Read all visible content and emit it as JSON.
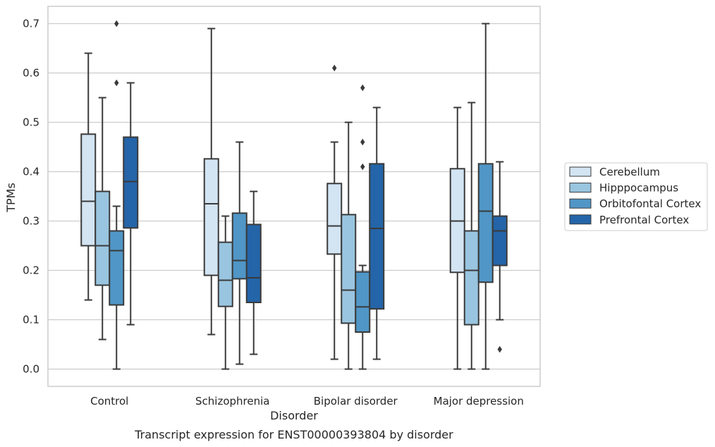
{
  "chart_data": {
    "type": "boxplot",
    "xlabel": "Disorder",
    "ylabel": "TPMs",
    "caption": "Transcript expression for ENST00000393804 by disorder",
    "ylim": [
      -0.035,
      0.735
    ],
    "yticks": [
      "0.0",
      "0.1",
      "0.2",
      "0.3",
      "0.4",
      "0.5",
      "0.6",
      "0.7"
    ],
    "ytick_values": [
      0.0,
      0.1,
      0.2,
      0.3,
      0.4,
      0.5,
      0.6,
      0.7
    ],
    "grid": "horizontal",
    "legend_position": "right",
    "categories": [
      "Control",
      "Schizophrenia",
      "Bipolar disorder",
      "Major depression"
    ],
    "series": [
      {
        "name": "Cerebellum",
        "color": "#d3e4f3",
        "boxes": [
          {
            "whisker_low": 0.14,
            "q1": 0.25,
            "median": 0.34,
            "q3": 0.476,
            "whisker_high": 0.64,
            "outliers": []
          },
          {
            "whisker_low": 0.07,
            "q1": 0.19,
            "median": 0.335,
            "q3": 0.426,
            "whisker_high": 0.69,
            "outliers": []
          },
          {
            "whisker_low": 0.02,
            "q1": 0.233,
            "median": 0.29,
            "q3": 0.376,
            "whisker_high": 0.46,
            "outliers": [
              0.61
            ]
          },
          {
            "whisker_low": 0.0,
            "q1": 0.196,
            "median": 0.3,
            "q3": 0.406,
            "whisker_high": 0.53,
            "outliers": []
          }
        ]
      },
      {
        "name": "Hipppocampus",
        "color": "#99c5e0",
        "boxes": [
          {
            "whisker_low": 0.06,
            "q1": 0.17,
            "median": 0.25,
            "q3": 0.36,
            "whisker_high": 0.55,
            "outliers": []
          },
          {
            "whisker_low": 0.0,
            "q1": 0.127,
            "median": 0.18,
            "q3": 0.257,
            "whisker_high": 0.31,
            "outliers": []
          },
          {
            "whisker_low": 0.0,
            "q1": 0.093,
            "median": 0.16,
            "q3": 0.313,
            "whisker_high": 0.5,
            "outliers": []
          },
          {
            "whisker_low": 0.0,
            "q1": 0.09,
            "median": 0.2,
            "q3": 0.28,
            "whisker_high": 0.54,
            "outliers": []
          }
        ]
      },
      {
        "name": "Orbitofontal Cortex",
        "color": "#5096c6",
        "boxes": [
          {
            "whisker_low": 0.0,
            "q1": 0.13,
            "median": 0.24,
            "q3": 0.28,
            "whisker_high": 0.33,
            "outliers": [
              0.58,
              0.7
            ]
          },
          {
            "whisker_low": 0.01,
            "q1": 0.183,
            "median": 0.22,
            "q3": 0.316,
            "whisker_high": 0.46,
            "outliers": []
          },
          {
            "whisker_low": 0.0,
            "q1": 0.075,
            "median": 0.126,
            "q3": 0.197,
            "whisker_high": 0.21,
            "outliers": [
              0.41,
              0.46,
              0.57
            ]
          },
          {
            "whisker_low": 0.0,
            "q1": 0.176,
            "median": 0.32,
            "q3": 0.416,
            "whisker_high": 0.7,
            "outliers": []
          }
        ]
      },
      {
        "name": "Prefrontal Cortex",
        "color": "#2464a8",
        "boxes": [
          {
            "whisker_low": 0.09,
            "q1": 0.286,
            "median": 0.38,
            "q3": 0.47,
            "whisker_high": 0.58,
            "outliers": []
          },
          {
            "whisker_low": 0.03,
            "q1": 0.135,
            "median": 0.185,
            "q3": 0.293,
            "whisker_high": 0.36,
            "outliers": []
          },
          {
            "whisker_low": 0.02,
            "q1": 0.122,
            "median": 0.285,
            "q3": 0.416,
            "whisker_high": 0.53,
            "outliers": []
          },
          {
            "whisker_low": 0.1,
            "q1": 0.21,
            "median": 0.28,
            "q3": 0.31,
            "whisker_high": 0.42,
            "outliers": [
              0.04
            ]
          }
        ]
      }
    ]
  }
}
